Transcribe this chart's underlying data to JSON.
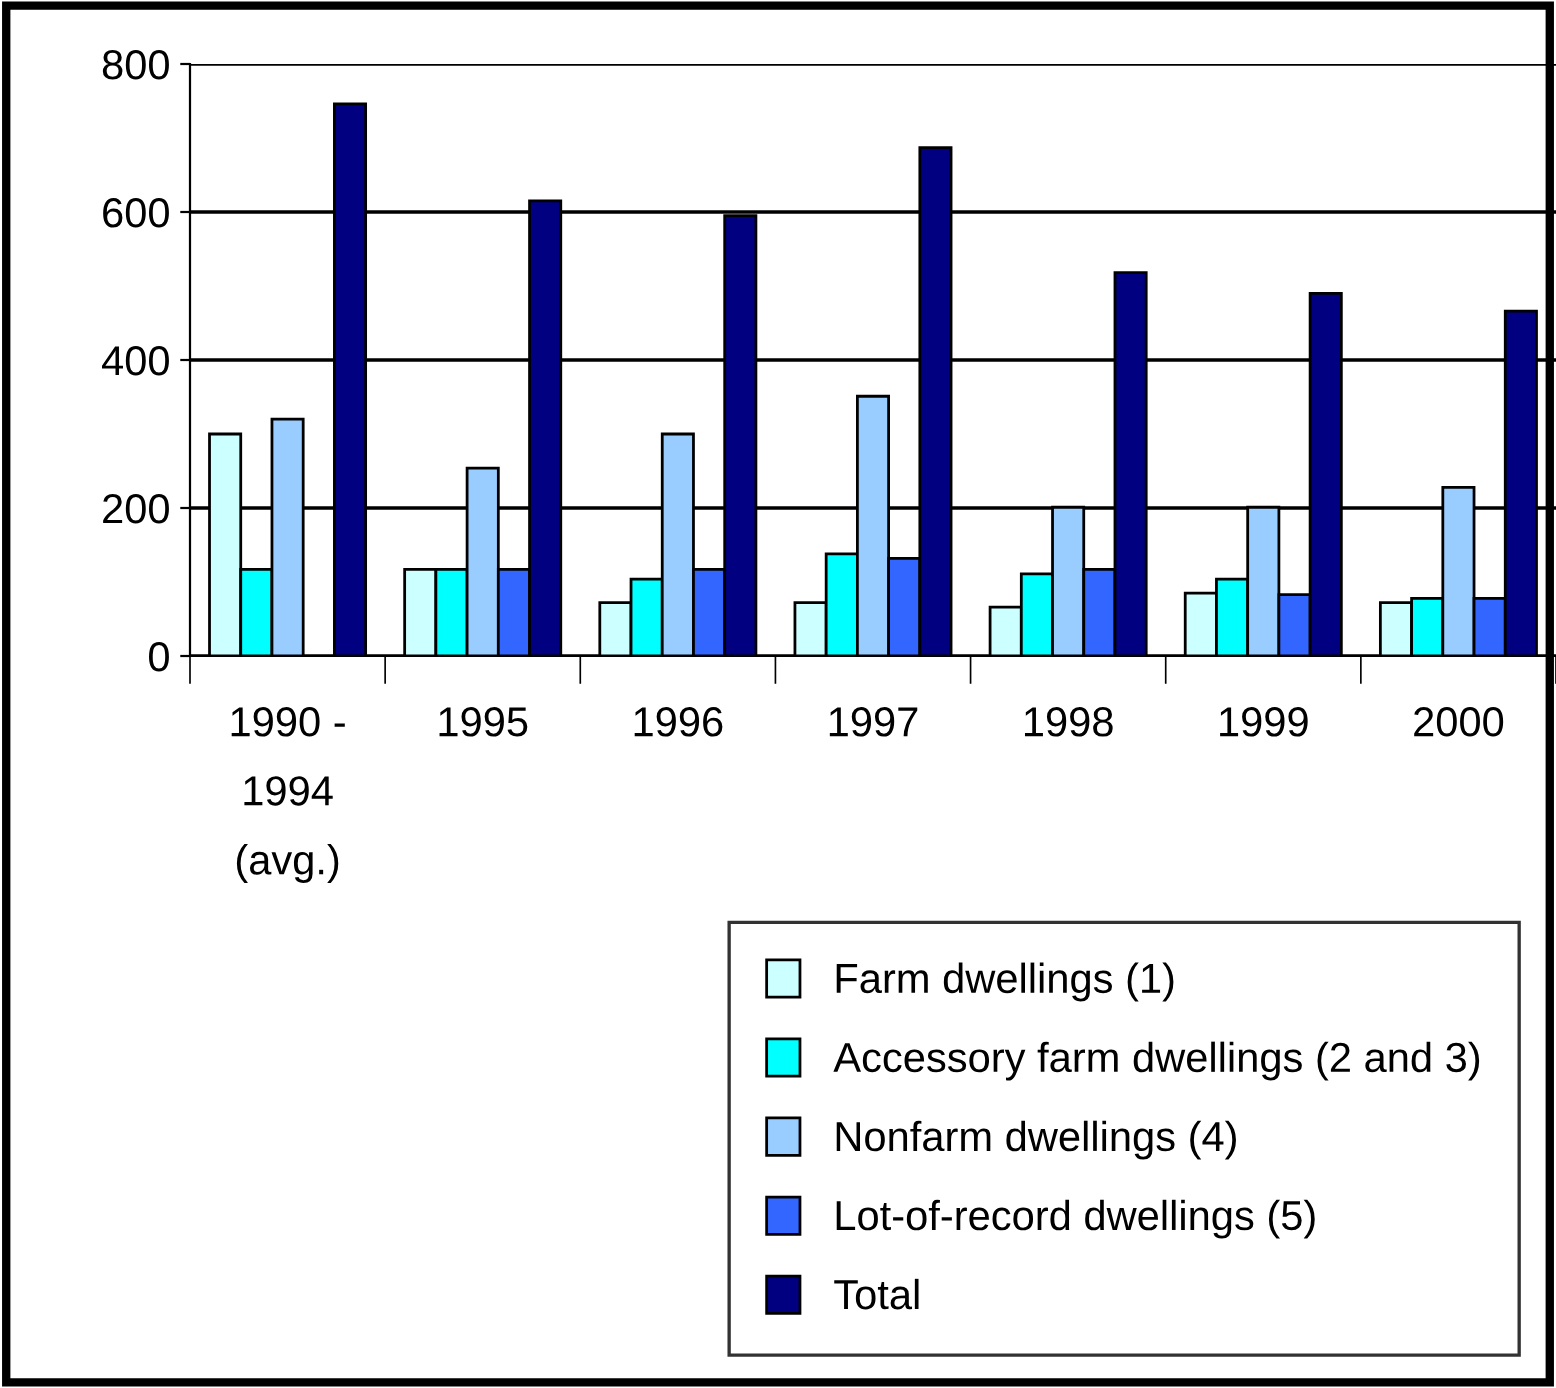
{
  "chart_data": {
    "type": "bar",
    "categories": [
      "1990 -\n1994\n(avg.)",
      "1995",
      "1996",
      "1997",
      "1998",
      "1999",
      "2000"
    ],
    "series": [
      {
        "name": "Farm dwellings (1)",
        "color": "#ccffff",
        "values": [
          300,
          117,
          72,
          72,
          66,
          85,
          72
        ]
      },
      {
        "name": "Accessory farm dwellings (2 and 3)",
        "color": "#00ffff",
        "values": [
          117,
          117,
          104,
          138,
          111,
          104,
          78
        ]
      },
      {
        "name": "Nonfarm dwellings (4)",
        "color": "#99ccff",
        "values": [
          320,
          254,
          300,
          351,
          201,
          201,
          228
        ]
      },
      {
        "name": "Lot-of-record dwellings (5)",
        "color": "#3366ff",
        "values": [
          null,
          117,
          117,
          132,
          117,
          83,
          78
        ]
      },
      {
        "name": "Total",
        "color": "#000080",
        "values": [
          746,
          615,
          595,
          687,
          518,
          490,
          466
        ]
      }
    ],
    "ylim": [
      0,
      800
    ],
    "yticks": [
      0,
      200,
      400,
      600,
      800
    ],
    "grid": "y",
    "legend": "bottom right"
  }
}
